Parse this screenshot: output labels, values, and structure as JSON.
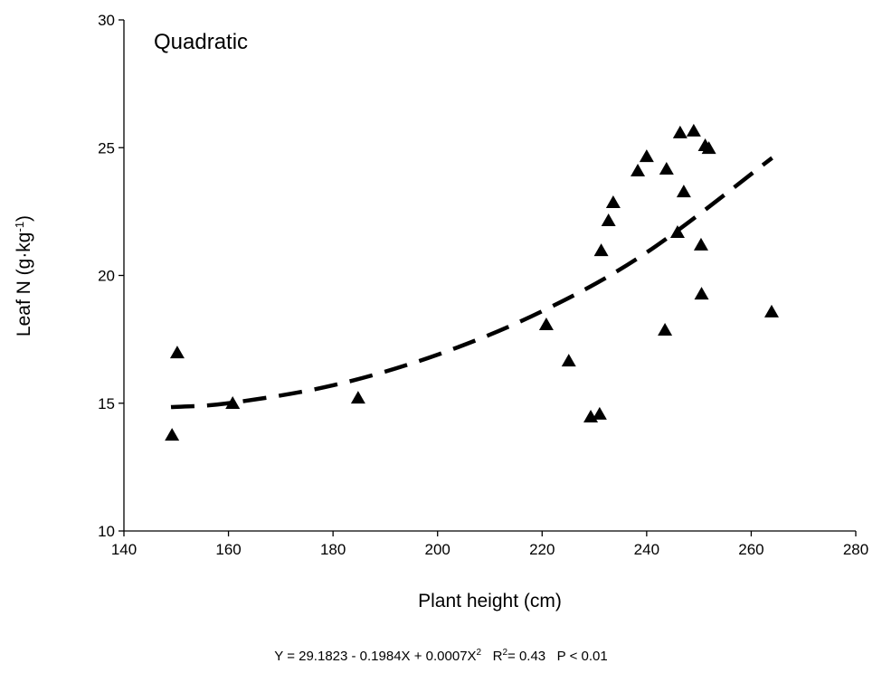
{
  "chart_data": {
    "type": "scatter",
    "title": "Quadratic",
    "xlabel": "Plant height (cm)",
    "ylabel_main": "Leaf N (g·kg",
    "ylabel_sup": "-1",
    "ylabel_end": ")",
    "xlim": [
      140,
      280
    ],
    "ylim": [
      10,
      30
    ],
    "xticks": [
      140,
      160,
      180,
      200,
      220,
      240,
      260,
      280
    ],
    "yticks": [
      10,
      15,
      20,
      25,
      30
    ],
    "grid": false,
    "marker": "triangle",
    "points": [
      [
        149.2,
        13.75
      ],
      [
        150.2,
        16.97
      ],
      [
        160.8,
        14.99
      ],
      [
        184.8,
        15.2
      ],
      [
        220.8,
        18.07
      ],
      [
        225.1,
        16.65
      ],
      [
        229.3,
        14.46
      ],
      [
        231.0,
        14.57
      ],
      [
        231.3,
        20.97
      ],
      [
        232.7,
        22.14
      ],
      [
        233.6,
        22.85
      ],
      [
        238.3,
        24.09
      ],
      [
        240.0,
        24.65
      ],
      [
        243.8,
        24.16
      ],
      [
        243.5,
        17.86
      ],
      [
        245.9,
        21.68
      ],
      [
        246.4,
        25.58
      ],
      [
        247.1,
        23.27
      ],
      [
        249.0,
        25.65
      ],
      [
        250.4,
        21.19
      ],
      [
        250.5,
        19.27
      ],
      [
        251.2,
        25.08
      ],
      [
        251.9,
        24.97
      ],
      [
        263.9,
        18.57
      ]
    ],
    "fit_curve": {
      "style": "dashed",
      "points": [
        [
          149,
          14.85
        ],
        [
          160,
          15.0
        ],
        [
          180,
          15.7
        ],
        [
          200,
          16.9
        ],
        [
          220,
          18.6
        ],
        [
          240,
          20.9
        ],
        [
          264,
          24.6
        ]
      ]
    },
    "equation": {
      "main": "Y = 29.1823 - 0.1984X + 0.0007X",
      "exp": "2",
      "r_label": "R",
      "r_exp": "2",
      "r_value": "= 0.43",
      "p": "P < 0.01"
    }
  }
}
